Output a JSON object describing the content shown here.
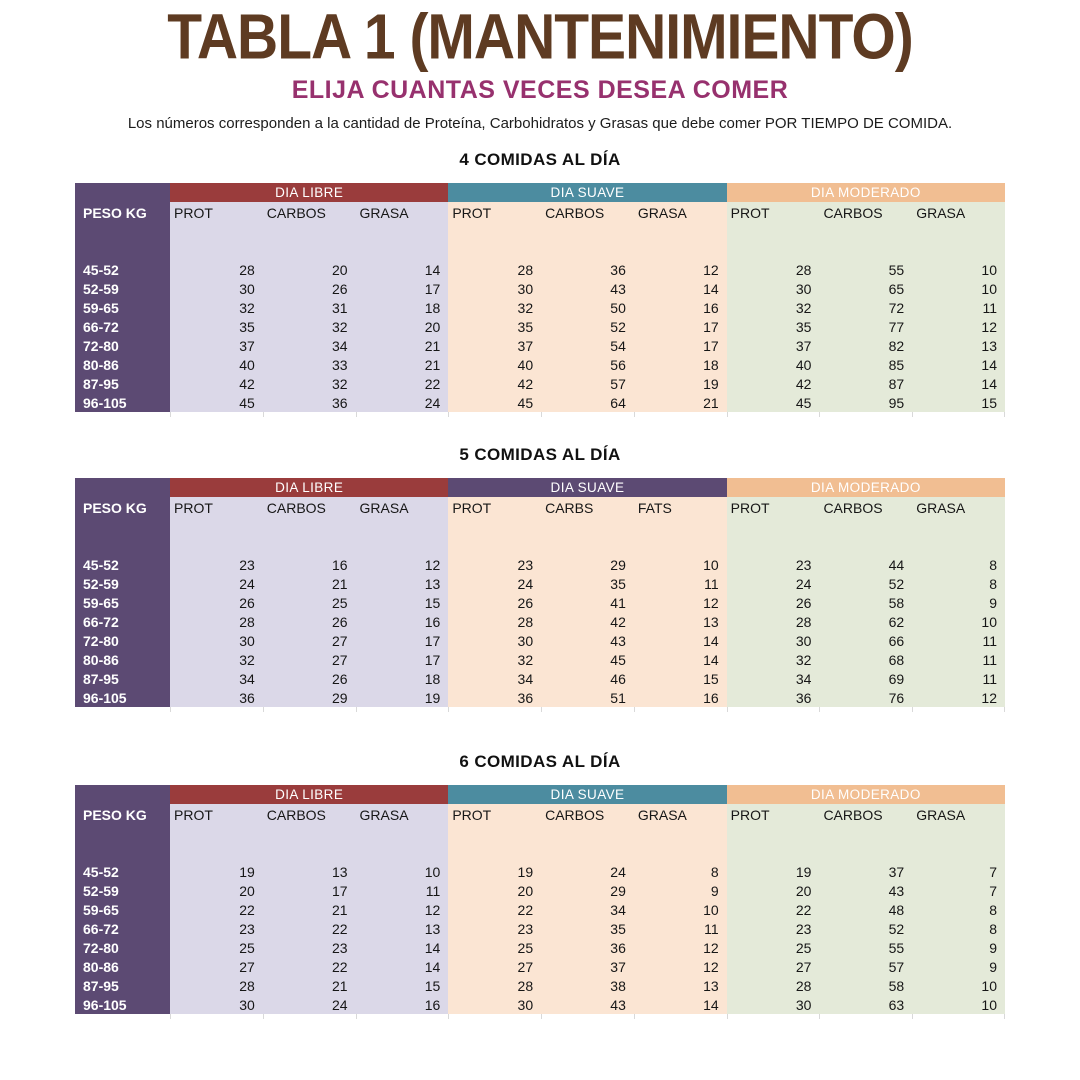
{
  "header": {
    "title": "TABLA 1 (MANTENIMIENTO)",
    "subtitle": "ELIJA CUANTAS VECES DESEA COMER",
    "description": "Los números corresponden a la cantidad de Proteína, Carbohidratos y Grasas que debe comer POR TIEMPO DE COMIDA."
  },
  "colors": {
    "title": "#5E3B22",
    "subtitle": "#97316E",
    "peso_column": "#5C4A73",
    "tick": "#d9d9d9"
  },
  "tables": [
    {
      "heading": "4 COMIDAS AL DÍA",
      "peso_header": "PESO KG",
      "groups": [
        {
          "label": "DIA LIBRE",
          "band": "#9A3C3C",
          "band_text": "#FFFFFF",
          "body": "#DBD8E8",
          "columns": [
            "PROT",
            "CARBOS",
            "GRASA"
          ]
        },
        {
          "label": "DIA SUAVE",
          "band": "#4C8CA0",
          "band_text": "#FFFFFF",
          "body": "#FBE5D3",
          "columns": [
            "PROT",
            "CARBOS",
            "GRASA"
          ]
        },
        {
          "label": "DIA MODERADO",
          "band": "#F1BE92",
          "band_text": "#FFFFFF",
          "body": "#E4EAD9",
          "columns": [
            "PROT",
            "CARBOS",
            "GRASA"
          ]
        }
      ],
      "rows": [
        {
          "peso": "45-52",
          "values": [
            [
              28,
              20,
              14
            ],
            [
              28,
              36,
              12
            ],
            [
              28,
              55,
              10
            ]
          ]
        },
        {
          "peso": "52-59",
          "values": [
            [
              30,
              26,
              17
            ],
            [
              30,
              43,
              14
            ],
            [
              30,
              65,
              10
            ]
          ]
        },
        {
          "peso": "59-65",
          "values": [
            [
              32,
              31,
              18
            ],
            [
              32,
              50,
              16
            ],
            [
              32,
              72,
              11
            ]
          ]
        },
        {
          "peso": "66-72",
          "values": [
            [
              35,
              32,
              20
            ],
            [
              35,
              52,
              17
            ],
            [
              35,
              77,
              12
            ]
          ]
        },
        {
          "peso": "72-80",
          "values": [
            [
              37,
              34,
              21
            ],
            [
              37,
              54,
              17
            ],
            [
              37,
              82,
              13
            ]
          ]
        },
        {
          "peso": "80-86",
          "values": [
            [
              40,
              33,
              21
            ],
            [
              40,
              56,
              18
            ],
            [
              40,
              85,
              14
            ]
          ]
        },
        {
          "peso": "87-95",
          "values": [
            [
              42,
              32,
              22
            ],
            [
              42,
              57,
              19
            ],
            [
              42,
              87,
              14
            ]
          ]
        },
        {
          "peso": "96-105",
          "values": [
            [
              45,
              36,
              24
            ],
            [
              45,
              64,
              21
            ],
            [
              45,
              95,
              15
            ]
          ]
        }
      ]
    },
    {
      "heading": "5 COMIDAS AL DÍA",
      "peso_header": "PESO KG",
      "groups": [
        {
          "label": "DIA LIBRE",
          "band": "#9A3C3C",
          "band_text": "#FFFFFF",
          "body": "#DBD8E8",
          "columns": [
            "PROT",
            "CARBOS",
            "GRASA"
          ]
        },
        {
          "label": "DIA SUAVE",
          "band": "#5C4A73",
          "band_text": "#FFFFFF",
          "body": "#FBE5D3",
          "columns": [
            "PROT",
            "CARBS",
            "FATS"
          ]
        },
        {
          "label": "DIA MODERADO",
          "band": "#F1BE92",
          "band_text": "#FFFFFF",
          "body": "#E4EAD9",
          "columns": [
            "PROT",
            "CARBOS",
            "GRASA"
          ]
        }
      ],
      "rows": [
        {
          "peso": "45-52",
          "values": [
            [
              23,
              16,
              12
            ],
            [
              23,
              29,
              10
            ],
            [
              23,
              44,
              8
            ]
          ]
        },
        {
          "peso": "52-59",
          "values": [
            [
              24,
              21,
              13
            ],
            [
              24,
              35,
              11
            ],
            [
              24,
              52,
              8
            ]
          ]
        },
        {
          "peso": "59-65",
          "values": [
            [
              26,
              25,
              15
            ],
            [
              26,
              41,
              12
            ],
            [
              26,
              58,
              9
            ]
          ]
        },
        {
          "peso": "66-72",
          "values": [
            [
              28,
              26,
              16
            ],
            [
              28,
              42,
              13
            ],
            [
              28,
              62,
              10
            ]
          ]
        },
        {
          "peso": "72-80",
          "values": [
            [
              30,
              27,
              17
            ],
            [
              30,
              43,
              14
            ],
            [
              30,
              66,
              11
            ]
          ]
        },
        {
          "peso": "80-86",
          "values": [
            [
              32,
              27,
              17
            ],
            [
              32,
              45,
              14
            ],
            [
              32,
              68,
              11
            ]
          ]
        },
        {
          "peso": "87-95",
          "values": [
            [
              34,
              26,
              18
            ],
            [
              34,
              46,
              15
            ],
            [
              34,
              69,
              11
            ]
          ]
        },
        {
          "peso": "96-105",
          "values": [
            [
              36,
              29,
              19
            ],
            [
              36,
              51,
              16
            ],
            [
              36,
              76,
              12
            ]
          ]
        }
      ]
    },
    {
      "heading": "6 COMIDAS AL DÍA",
      "peso_header": "PESO KG",
      "groups": [
        {
          "label": "DIA LIBRE",
          "band": "#9A3C3C",
          "band_text": "#FFFFFF",
          "body": "#DBD8E8",
          "columns": [
            "PROT",
            "CARBOS",
            "GRASA"
          ]
        },
        {
          "label": "DIA SUAVE",
          "band": "#4C8CA0",
          "band_text": "#FFFFFF",
          "body": "#FBE5D3",
          "columns": [
            "PROT",
            "CARBOS",
            "GRASA"
          ]
        },
        {
          "label": "DIA MODERADO",
          "band": "#F1BE92",
          "band_text": "#FFFFFF",
          "body": "#E4EAD9",
          "columns": [
            "PROT",
            "CARBOS",
            "GRASA"
          ]
        }
      ],
      "rows": [
        {
          "peso": "45-52",
          "values": [
            [
              19,
              13,
              10
            ],
            [
              19,
              24,
              8
            ],
            [
              19,
              37,
              7
            ]
          ]
        },
        {
          "peso": "52-59",
          "values": [
            [
              20,
              17,
              11
            ],
            [
              20,
              29,
              9
            ],
            [
              20,
              43,
              7
            ]
          ]
        },
        {
          "peso": "59-65",
          "values": [
            [
              22,
              21,
              12
            ],
            [
              22,
              34,
              10
            ],
            [
              22,
              48,
              8
            ]
          ]
        },
        {
          "peso": "66-72",
          "values": [
            [
              23,
              22,
              13
            ],
            [
              23,
              35,
              11
            ],
            [
              23,
              52,
              8
            ]
          ]
        },
        {
          "peso": "72-80",
          "values": [
            [
              25,
              23,
              14
            ],
            [
              25,
              36,
              12
            ],
            [
              25,
              55,
              9
            ]
          ]
        },
        {
          "peso": "80-86",
          "values": [
            [
              27,
              22,
              14
            ],
            [
              27,
              37,
              12
            ],
            [
              27,
              57,
              9
            ]
          ]
        },
        {
          "peso": "87-95",
          "values": [
            [
              28,
              21,
              15
            ],
            [
              28,
              38,
              13
            ],
            [
              28,
              58,
              10
            ]
          ]
        },
        {
          "peso": "96-105",
          "values": [
            [
              30,
              24,
              16
            ],
            [
              30,
              43,
              14
            ],
            [
              30,
              63,
              10
            ]
          ]
        }
      ]
    }
  ]
}
